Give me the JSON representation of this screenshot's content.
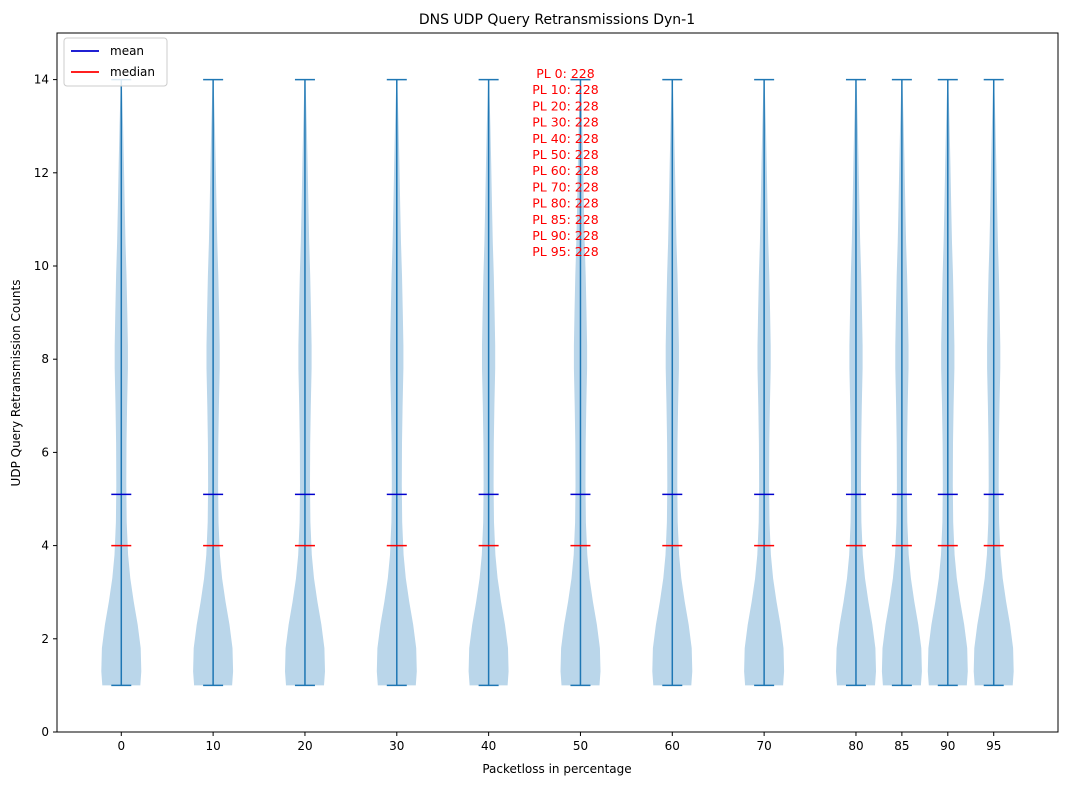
{
  "chart_data": {
    "type": "violin",
    "title": "DNS UDP Query Retransmissions Dyn-1",
    "xlabel": "Packetloss in percentage",
    "ylabel": "UDP Query Retransmission Counts",
    "xlim": [
      -7,
      102
    ],
    "ylim": [
      0,
      15
    ],
    "x_ticks": [
      0,
      10,
      20,
      30,
      40,
      50,
      60,
      70,
      80,
      85,
      90,
      95
    ],
    "y_ticks": [
      0,
      2,
      4,
      6,
      8,
      10,
      12,
      14
    ],
    "grid": false,
    "colors": {
      "violin_fill": "#bad6ea",
      "violin_line": "#1f77b4",
      "mean": "#0000cd",
      "median": "#ff0000",
      "annotation": "#ff0000"
    },
    "legend": {
      "placement": "top-left",
      "entries": [
        {
          "label": "mean",
          "color": "#0000cd"
        },
        {
          "label": "median",
          "color": "#ff0000"
        }
      ]
    },
    "density_profile": {
      "y": [
        1,
        1.3,
        1.8,
        2.3,
        2.8,
        3.3,
        3.8,
        4.5,
        5.3,
        6.2,
        7.0,
        7.8,
        8.3,
        9.0,
        9.8,
        10.5,
        11.3,
        12.2,
        13.0,
        13.6,
        14
      ],
      "relative_width": [
        0.95,
        1.0,
        0.97,
        0.82,
        0.62,
        0.45,
        0.34,
        0.27,
        0.25,
        0.26,
        0.29,
        0.33,
        0.33,
        0.3,
        0.26,
        0.21,
        0.17,
        0.13,
        0.09,
        0.05,
        0.02
      ]
    },
    "series": [
      {
        "x": 0,
        "min": 1,
        "max": 14,
        "mean": 5.1,
        "median": 4
      },
      {
        "x": 10,
        "min": 1,
        "max": 14,
        "mean": 5.1,
        "median": 4
      },
      {
        "x": 20,
        "min": 1,
        "max": 14,
        "mean": 5.1,
        "median": 4
      },
      {
        "x": 30,
        "min": 1,
        "max": 14,
        "mean": 5.1,
        "median": 4
      },
      {
        "x": 40,
        "min": 1,
        "max": 14,
        "mean": 5.1,
        "median": 4
      },
      {
        "x": 50,
        "min": 1,
        "max": 14,
        "mean": 5.1,
        "median": 4
      },
      {
        "x": 60,
        "min": 1,
        "max": 14,
        "mean": 5.1,
        "median": 4
      },
      {
        "x": 70,
        "min": 1,
        "max": 14,
        "mean": 5.1,
        "median": 4
      },
      {
        "x": 80,
        "min": 1,
        "max": 14,
        "mean": 5.1,
        "median": 4
      },
      {
        "x": 85,
        "min": 1,
        "max": 14,
        "mean": 5.1,
        "median": 4
      },
      {
        "x": 90,
        "min": 1,
        "max": 14,
        "mean": 5.1,
        "median": 4
      },
      {
        "x": 95,
        "min": 1,
        "max": 14,
        "mean": 5.1,
        "median": 4
      }
    ],
    "annotations": [
      "PL 0: 228",
      "PL 10: 228",
      "PL 20: 228",
      "PL 30: 228",
      "PL 40: 228",
      "PL 50: 228",
      "PL 60: 228",
      "PL 70: 228",
      "PL 80: 228",
      "PL 85: 228",
      "PL 90: 228",
      "PL 95: 228"
    ]
  }
}
